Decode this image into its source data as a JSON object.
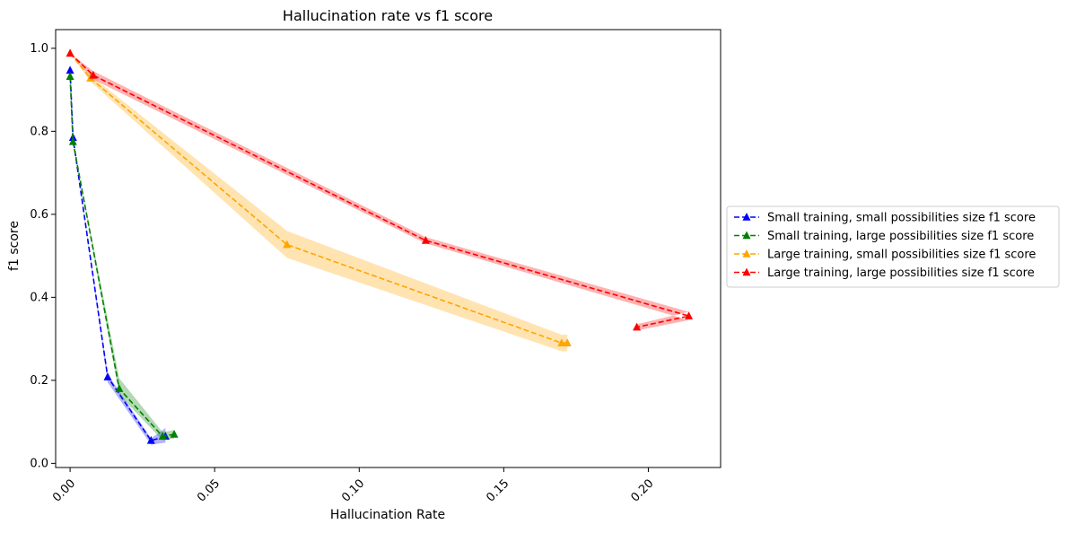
{
  "chart_data": {
    "type": "line",
    "title": "Hallucination rate vs f1 score",
    "xlabel": "Hallucination Rate",
    "ylabel": "f1 score",
    "xlim": [
      -0.005,
      0.225
    ],
    "ylim": [
      -0.01,
      1.045
    ],
    "xticks": [
      0.0,
      0.05,
      0.1,
      0.15,
      0.2
    ],
    "xtick_labels": [
      "0.00",
      "0.05",
      "0.10",
      "0.15",
      "0.20"
    ],
    "yticks": [
      0.0,
      0.2,
      0.4,
      0.6,
      0.8,
      1.0
    ],
    "ytick_labels": [
      "0.0",
      "0.2",
      "0.4",
      "0.6",
      "0.8",
      "1.0"
    ],
    "xtick_rotation": 45,
    "grid": false,
    "legend_position": "outside right",
    "series": [
      {
        "name": "Small training, small possibilities size f1 score",
        "color": "#0000ff",
        "marker": "triangle-up",
        "linestyle": "dashed",
        "x": [
          0.0,
          0.001,
          0.013,
          0.028,
          0.033
        ],
        "y": [
          0.947,
          0.785,
          0.208,
          0.055,
          0.065
        ],
        "band_lower": [
          0.947,
          0.785,
          0.195,
          0.045,
          0.05
        ],
        "band_upper": [
          0.947,
          0.785,
          0.215,
          0.06,
          0.085
        ]
      },
      {
        "name": "Small training, large possibilities size f1 score",
        "color": "#008000",
        "marker": "triangle-up",
        "linestyle": "dashed",
        "x": [
          0.0,
          0.001,
          0.017,
          0.032,
          0.036
        ],
        "y": [
          0.932,
          0.775,
          0.18,
          0.065,
          0.07
        ],
        "band_lower": [
          0.932,
          0.775,
          0.165,
          0.055,
          0.06
        ],
        "band_upper": [
          0.932,
          0.775,
          0.205,
          0.075,
          0.08
        ]
      },
      {
        "name": "Large training, small possibilities size f1 score",
        "color": "#ffa500",
        "marker": "triangle-up",
        "linestyle": "dashed",
        "x": [
          0.0,
          0.007,
          0.075,
          0.17,
          0.172
        ],
        "y": [
          0.988,
          0.928,
          0.527,
          0.29,
          0.29
        ],
        "band_lower": [
          0.988,
          0.92,
          0.495,
          0.27,
          0.27
        ],
        "band_upper": [
          0.988,
          0.935,
          0.56,
          0.31,
          0.31
        ]
      },
      {
        "name": "Large training, large possibilities size f1 score",
        "color": "#ff0000",
        "marker": "triangle-up",
        "linestyle": "dashed",
        "x": [
          0.0,
          0.008,
          0.123,
          0.214,
          0.196
        ],
        "y": [
          0.988,
          0.935,
          0.537,
          0.355,
          0.328
        ],
        "band_lower": [
          0.988,
          0.925,
          0.53,
          0.345,
          0.32
        ],
        "band_upper": [
          0.988,
          0.945,
          0.545,
          0.365,
          0.335
        ]
      }
    ]
  }
}
